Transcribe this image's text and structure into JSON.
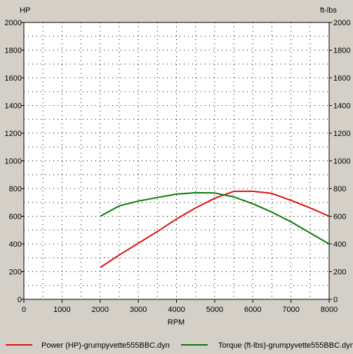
{
  "chart_data": {
    "type": "line",
    "xlabel": "RPM",
    "y_left_unit": "HP",
    "y_right_unit": "ft-lbs",
    "xlim": [
      0,
      8000
    ],
    "ylim_left": [
      0,
      2000
    ],
    "ylim_right": [
      0,
      2000
    ],
    "x_ticks": [
      0,
      1000,
      2000,
      3000,
      4000,
      5000,
      6000,
      7000,
      8000
    ],
    "y_ticks": [
      0,
      200,
      400,
      600,
      800,
      1000,
      1200,
      1400,
      1600,
      1800,
      2000
    ],
    "grid": true,
    "series": [
      {
        "name": "Power (HP)-grumpyvette555BBC.dyn",
        "color": "#e01010",
        "axis": "left",
        "x": [
          2000,
          2500,
          3000,
          3500,
          4000,
          4500,
          5000,
          5500,
          6000,
          6500,
          7000,
          7500,
          8000
        ],
        "y": [
          230,
          320,
          405,
          490,
          580,
          660,
          730,
          780,
          780,
          765,
          715,
          660,
          600
        ]
      },
      {
        "name": "Torque (ft-lbs)-grumpyvette555BBC.dyn",
        "color": "#0a7a0a",
        "axis": "right",
        "x": [
          2000,
          2500,
          3000,
          3500,
          4000,
          4500,
          5000,
          5500,
          6000,
          6500,
          7000,
          7500,
          8000
        ],
        "y": [
          600,
          675,
          710,
          735,
          760,
          770,
          768,
          740,
          690,
          630,
          560,
          480,
          400
        ]
      }
    ]
  }
}
